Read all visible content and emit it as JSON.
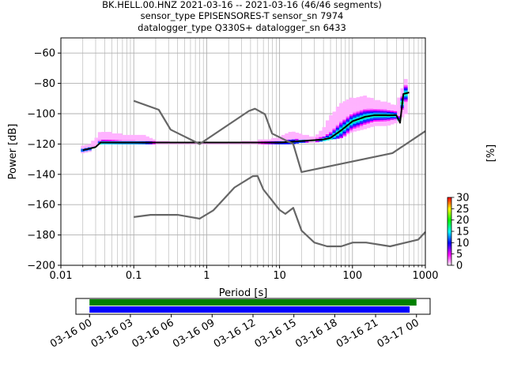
{
  "header": {
    "line1": "BK.HELL.00.HNZ   2021-03-16 -- 2021-03-16  (46/46 segments)",
    "line2": "sensor_type EPISENSORES-T sensor_sn 7974",
    "line3": "datalogger_type Q330S+ datalogger_sn 6433"
  },
  "chart_data": [
    {
      "type": "heatmap",
      "subtype": "probabilistic-power-spectral-density",
      "xlabel": "Period [s]",
      "ylabel": "Power [dB]",
      "xscale": "log",
      "xlim": [
        0.01,
        1000
      ],
      "ylim": [
        -200,
        -50
      ],
      "x_ticks": [
        0.01,
        0.1,
        1,
        10,
        100,
        1000
      ],
      "x_tick_labels": [
        "0.01",
        "0.1",
        "1",
        "10",
        "100",
        "1000"
      ],
      "y_ticks": [
        -200,
        -180,
        -160,
        -140,
        -120,
        -100,
        -80,
        -60
      ],
      "y_tick_labels": [
        "−200",
        "−180",
        "−160",
        "−140",
        "−120",
        "−100",
        "−80",
        "−60"
      ],
      "grid": true,
      "colorbar": {
        "label": "[%]",
        "range": [
          0,
          30
        ],
        "ticks": [
          0,
          5,
          10,
          15,
          20,
          25,
          30
        ],
        "tick_labels": [
          "0",
          "5",
          "10",
          "15",
          "20",
          "25",
          "30"
        ],
        "colors": [
          "#ffffff",
          "#ff00ff",
          "#0000ff",
          "#00ffff",
          "#00ff00",
          "#ffff00",
          "#ff0000"
        ]
      },
      "density_columns": [
        {
          "period": 0.02,
          "power_min": -126,
          "power_max": -121
        },
        {
          "period": 0.025,
          "power_min": -125,
          "power_max": -120
        },
        {
          "period": 0.03,
          "power_min": -121,
          "power_max": -117
        },
        {
          "period": 0.035,
          "power_min": -120,
          "power_max": -112
        },
        {
          "period": 0.05,
          "power_min": -120,
          "power_max": -113
        },
        {
          "period": 0.07,
          "power_min": -120,
          "power_max": -114
        },
        {
          "period": 0.1,
          "power_min": -120,
          "power_max": -114
        },
        {
          "period": 0.14,
          "power_min": -120,
          "power_max": -115
        },
        {
          "period": 0.2,
          "power_min": -120,
          "power_max": -118
        },
        {
          "period": 0.3,
          "power_min": -120,
          "power_max": -119
        },
        {
          "period": 1,
          "power_min": -120,
          "power_max": -119
        },
        {
          "period": 3,
          "power_min": -120,
          "power_max": -119
        },
        {
          "period": 5,
          "power_min": -120,
          "power_max": -118
        },
        {
          "period": 8,
          "power_min": -120,
          "power_max": -117
        },
        {
          "period": 10,
          "power_min": -120,
          "power_max": -116
        },
        {
          "period": 15,
          "power_min": -120,
          "power_max": -112
        },
        {
          "period": 20,
          "power_min": -119,
          "power_max": -114
        },
        {
          "period": 30,
          "power_min": -119,
          "power_max": -116
        },
        {
          "period": 40,
          "power_min": -118,
          "power_max": -110
        },
        {
          "period": 50,
          "power_min": -117,
          "power_max": -102
        },
        {
          "period": 70,
          "power_min": -116,
          "power_max": -93
        },
        {
          "period": 100,
          "power_min": -112,
          "power_max": -90
        },
        {
          "period": 150,
          "power_min": -110,
          "power_max": -89
        },
        {
          "period": 200,
          "power_min": -108,
          "power_max": -91
        },
        {
          "period": 300,
          "power_min": -108,
          "power_max": -93
        },
        {
          "period": 400,
          "power_min": -106,
          "power_max": -95
        },
        {
          "period": 600,
          "power_min": -98,
          "power_max": -72
        }
      ],
      "series": [
        {
          "name": "",
          "color": "#000000",
          "points": [
            [
              0.02,
              -124
            ],
            [
              0.025,
              -123
            ],
            [
              0.03,
              -122
            ],
            [
              0.035,
              -119
            ],
            [
              0.05,
              -119
            ],
            [
              0.1,
              -119
            ],
            [
              0.3,
              -119
            ],
            [
              1,
              -119
            ],
            [
              3,
              -119
            ],
            [
              10,
              -119
            ],
            [
              20,
              -118
            ],
            [
              40,
              -117
            ],
            [
              50,
              -116
            ],
            [
              70,
              -111
            ],
            [
              100,
              -105
            ],
            [
              150,
              -102
            ],
            [
              200,
              -101
            ],
            [
              300,
              -101
            ],
            [
              400,
              -101
            ],
            [
              450,
              -106
            ],
            [
              500,
              -87
            ],
            [
              600,
              -86
            ]
          ]
        },
        {
          "name": "",
          "color": "#666666",
          "points": [
            [
              0.1,
              -91.5
            ],
            [
              0.22,
              -97.4
            ],
            [
              0.32,
              -110.5
            ],
            [
              0.8,
              -120
            ],
            [
              3.8,
              -98.2
            ],
            [
              4.6,
              -96.7
            ],
            [
              6.3,
              -100.3
            ],
            [
              7.9,
              -113.1
            ],
            [
              15.4,
              -120
            ],
            [
              20,
              -138.5
            ],
            [
              354,
              -126
            ],
            [
              1000,
              -111.5
            ]
          ]
        },
        {
          "name": "",
          "color": "#666666",
          "points": [
            [
              0.1,
              -168.2
            ],
            [
              0.17,
              -166.7
            ],
            [
              0.4,
              -166.7
            ],
            [
              0.8,
              -169.2
            ],
            [
              1.24,
              -163.7
            ],
            [
              2.4,
              -148.7
            ],
            [
              4.3,
              -141.2
            ],
            [
              5,
              -141.1
            ],
            [
              6,
              -150
            ],
            [
              10,
              -163.5
            ],
            [
              12,
              -166.1
            ],
            [
              15.4,
              -162.1
            ],
            [
              20,
              -177.1
            ],
            [
              30,
              -185
            ],
            [
              45,
              -187.5
            ],
            [
              70,
              -187.5
            ],
            [
              101,
              -185
            ],
            [
              154,
              -185
            ],
            [
              328,
              -187.5
            ],
            [
              800,
              -183
            ],
            [
              1000,
              -178
            ]
          ]
        }
      ]
    },
    {
      "type": "timeline",
      "x_tick_labels": [
        "03-16 00",
        "03-16 03",
        "03-16 06",
        "03-16 09",
        "03-16 12",
        "03-16 15",
        "03-16 18",
        "03-16 21",
        "03-17 00"
      ],
      "xlim": [
        "2021-03-15 23:00",
        "2021-03-17 01:00"
      ],
      "bars": [
        {
          "color": "#008000",
          "start": "2021-03-16 00:00",
          "end": "2021-03-16 24:00"
        },
        {
          "color": "#0000ff",
          "start": "2021-03-16 00:00",
          "end": "2021-03-16 23:30"
        }
      ]
    }
  ]
}
